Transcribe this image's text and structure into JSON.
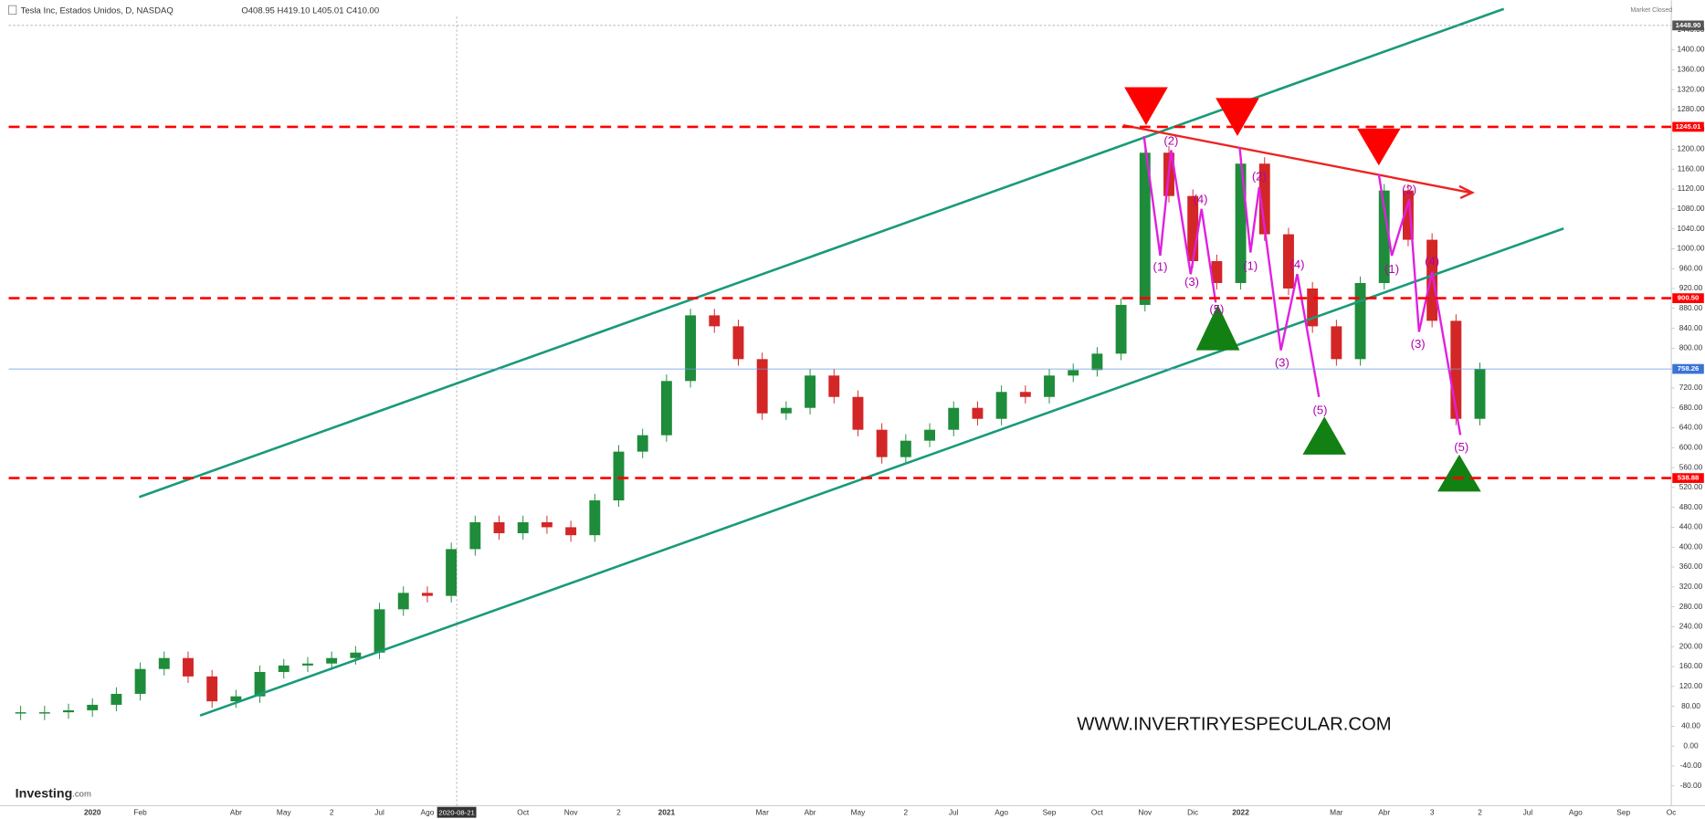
{
  "header": {
    "title": "Tesla Inc, Estados Unidos, D, NASDAQ",
    "ohlc": "O408.95   H419.10   L405.01   C410.00",
    "status": "Market Closed"
  },
  "watermark": "WWW.INVERTIRYESPECULAR.COM",
  "logo": {
    "brand": "Investing",
    "suffix": ".com"
  },
  "crosshair_date": "2020-08-21",
  "wave_labels": [
    "(1)",
    "(2)",
    "(3)",
    "(4)",
    "(5)"
  ],
  "chart_data": {
    "type": "candle",
    "categories": [
      null,
      null,
      null,
      "2020",
      null,
      "Feb",
      null,
      null,
      null,
      "Abr",
      null,
      "May",
      null,
      "2",
      null,
      "Jul",
      null,
      "Ago",
      null,
      null,
      null,
      "Oct",
      null,
      "Nov",
      null,
      "2",
      null,
      "2021",
      null,
      null,
      null,
      "Mar",
      null,
      "Abr",
      null,
      "May",
      null,
      "2",
      null,
      "Jul",
      null,
      "Ago",
      null,
      "Sep",
      null,
      "Oct",
      null,
      "Nov",
      null,
      "Dic",
      null,
      "2022",
      null,
      null,
      null,
      "Mar",
      null,
      "Abr",
      null,
      "3",
      null,
      "2",
      null,
      "Jul",
      null,
      "Ago",
      null,
      "Sep",
      null,
      "Oc"
    ],
    "values": [
      68,
      68,
      72,
      83,
      105,
      155,
      177,
      140,
      90,
      100,
      149,
      162,
      166,
      177,
      188,
      275,
      308,
      302,
      396,
      450,
      428,
      450,
      440,
      424,
      494,
      592,
      625,
      734,
      866,
      844,
      778,
      669,
      680,
      745,
      702,
      636,
      581,
      614,
      636,
      680,
      658,
      712,
      702,
      745,
      756,
      789,
      887,
      1193,
      1106,
      975,
      931,
      1171,
      1029,
      920,
      844,
      778,
      931,
      1117,
      1018,
      855,
      658,
      758,
      null,
      null,
      null,
      null,
      null,
      null,
      null,
      null
    ],
    "up_color": "#1e8c3a",
    "down_color": "#d32626",
    "ylim": [
      -120,
      1480
    ],
    "yticks": [
      {
        "value": -80,
        "label": "-80.00"
      },
      {
        "value": -40,
        "label": "-40.00"
      },
      {
        "value": 0,
        "label": "0.00"
      },
      {
        "value": 40,
        "label": "40.00"
      },
      {
        "value": 80,
        "label": "80.00"
      },
      {
        "value": 120,
        "label": "120.00"
      },
      {
        "value": 160,
        "label": "160.00"
      },
      {
        "value": 200,
        "label": "200.00"
      },
      {
        "value": 240,
        "label": "240.00"
      },
      {
        "value": 280,
        "label": "280.00"
      },
      {
        "value": 320,
        "label": "320.00"
      },
      {
        "value": 360,
        "label": "360.00"
      },
      {
        "value": 400,
        "label": "400.00"
      },
      {
        "value": 440,
        "label": "440.00"
      },
      {
        "value": 480,
        "label": "480.00"
      },
      {
        "value": 520,
        "label": "520.00"
      },
      {
        "value": 560,
        "label": "560.00"
      },
      {
        "value": 600,
        "label": "600.00"
      },
      {
        "value": 640,
        "label": "640.00"
      },
      {
        "value": 680,
        "label": "680.00"
      },
      {
        "value": 720,
        "label": "720.00"
      },
      {
        "value": 760,
        "label": "760.00"
      },
      {
        "value": 800,
        "label": "800.00"
      },
      {
        "value": 840,
        "label": "840.00"
      },
      {
        "value": 880,
        "label": "880.00"
      },
      {
        "value": 920,
        "label": "920.00"
      },
      {
        "value": 960,
        "label": "960.00"
      },
      {
        "value": 1000,
        "label": "1000.00"
      },
      {
        "value": 1040,
        "label": "1040.00"
      },
      {
        "value": 1080,
        "label": "1080.00"
      },
      {
        "value": 1120,
        "label": "1120.00"
      },
      {
        "value": 1160,
        "label": "1160.00"
      },
      {
        "value": 1200,
        "label": "1200.00"
      },
      {
        "value": 1240,
        "label": "1240.00"
      },
      {
        "value": 1280,
        "label": "1280.00"
      },
      {
        "value": 1320,
        "label": "1320.00"
      },
      {
        "value": 1360,
        "label": "1360.00"
      },
      {
        "value": 1400,
        "label": "1400.00"
      },
      {
        "value": 1440,
        "label": "1440.00"
      }
    ],
    "levels": [
      {
        "value": 1245.01,
        "color": "#ff0000"
      },
      {
        "value": 900.5,
        "label": "900.50",
        "color": "#ff0000"
      },
      {
        "value": 538.88,
        "color": "#ff0000"
      }
    ],
    "last_price": 758.26,
    "high_marker": {
      "value": 1448.9,
      "label": "1448.90"
    }
  }
}
